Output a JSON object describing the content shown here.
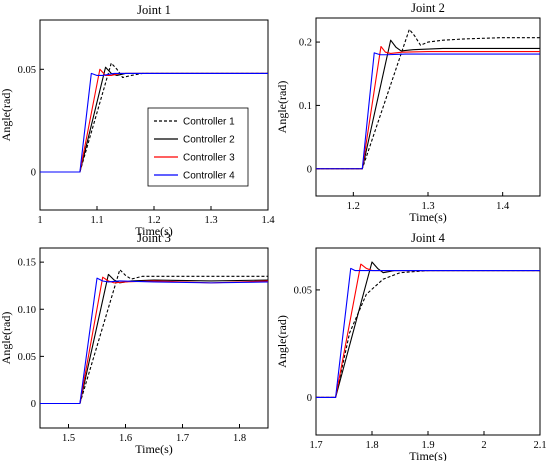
{
  "chart_data": [
    {
      "type": "line",
      "title": "Joint 1",
      "xlabel": "Time(s)",
      "ylabel": "Angle(rad)",
      "xlim": [
        1.0,
        1.4
      ],
      "ylim": [
        -0.0185,
        0.074
      ],
      "xticks": [
        1,
        1.1,
        1.2,
        1.3,
        1.4
      ],
      "xtick_labels": [
        "1",
        "1.1",
        "1.2",
        "1.3",
        "1.4"
      ],
      "yticks": [
        0,
        0.05
      ],
      "ytick_labels": [
        "0",
        "0.05"
      ],
      "legend": {
        "placement": "center",
        "entries": [
          "Controller 1",
          "Controller 2",
          "Controller 3",
          "Controller 4"
        ]
      },
      "series": [
        {
          "name": "Controller 1",
          "color": "#000000",
          "dash": "dashed",
          "x": [
            1.0,
            1.07,
            1.125,
            1.135,
            1.145,
            1.16,
            1.18,
            1.25,
            1.4
          ],
          "y": [
            0.0,
            0.0,
            0.053,
            0.05,
            0.046,
            0.047,
            0.048,
            0.048,
            0.048
          ]
        },
        {
          "name": "Controller 2",
          "color": "#000000",
          "dash": "solid",
          "x": [
            1.0,
            1.07,
            1.115,
            1.125,
            1.135,
            1.15,
            1.18,
            1.25,
            1.4
          ],
          "y": [
            0.0,
            0.0,
            0.051,
            0.048,
            0.047,
            0.048,
            0.048,
            0.048,
            0.048
          ]
        },
        {
          "name": "Controller 3",
          "color": "#ff0000",
          "dash": "solid",
          "x": [
            1.0,
            1.07,
            1.105,
            1.115,
            1.125,
            1.14,
            1.18,
            1.25,
            1.4
          ],
          "y": [
            0.0,
            0.0,
            0.05,
            0.047,
            0.047,
            0.048,
            0.048,
            0.048,
            0.048
          ]
        },
        {
          "name": "Controller 4",
          "color": "#0000ff",
          "dash": "solid",
          "x": [
            1.0,
            1.07,
            1.09,
            1.1,
            1.11,
            1.13,
            1.18,
            1.25,
            1.4
          ],
          "y": [
            0.0,
            0.0,
            0.048,
            0.047,
            0.047,
            0.048,
            0.048,
            0.048,
            0.048
          ]
        }
      ]
    },
    {
      "type": "line",
      "title": "Joint 2",
      "xlabel": "Time(s)",
      "ylabel": "Angle(rad)",
      "xlim": [
        1.15,
        1.45
      ],
      "ylim": [
        -0.043,
        0.238
      ],
      "xticks": [
        1.2,
        1.3,
        1.4
      ],
      "xtick_labels": [
        "1.2",
        "1.3",
        "1.4"
      ],
      "yticks": [
        0,
        0.1,
        0.2
      ],
      "ytick_labels": [
        "0",
        "0.1",
        "0.2"
      ],
      "series": [
        {
          "name": "Controller 1",
          "color": "#000000",
          "dash": "dashed",
          "x": [
            1.15,
            1.212,
            1.275,
            1.282,
            1.29,
            1.3,
            1.32,
            1.35,
            1.4,
            1.45
          ],
          "y": [
            0.0,
            0.0,
            0.22,
            0.21,
            0.195,
            0.2,
            0.203,
            0.205,
            0.207,
            0.207
          ]
        },
        {
          "name": "Controller 2",
          "color": "#000000",
          "dash": "solid",
          "x": [
            1.15,
            1.212,
            1.25,
            1.257,
            1.264,
            1.28,
            1.32,
            1.4,
            1.45
          ],
          "y": [
            0.0,
            0.0,
            0.203,
            0.192,
            0.186,
            0.188,
            0.19,
            0.19,
            0.19
          ]
        },
        {
          "name": "Controller 3",
          "color": "#ff0000",
          "dash": "solid",
          "x": [
            1.15,
            1.212,
            1.237,
            1.243,
            1.25,
            1.265,
            1.3,
            1.4,
            1.45
          ],
          "y": [
            0.0,
            0.0,
            0.193,
            0.184,
            0.182,
            0.184,
            0.185,
            0.185,
            0.185
          ]
        },
        {
          "name": "Controller 4",
          "color": "#0000ff",
          "dash": "solid",
          "x": [
            1.15,
            1.212,
            1.228,
            1.236,
            1.245,
            1.27,
            1.3,
            1.4,
            1.45
          ],
          "y": [
            0.0,
            0.0,
            0.183,
            0.18,
            0.18,
            0.181,
            0.181,
            0.181,
            0.181
          ]
        }
      ]
    },
    {
      "type": "line",
      "title": "Joint 3",
      "xlabel": "Time(s)",
      "ylabel": "Angle(rad)",
      "xlim": [
        1.45,
        1.85
      ],
      "ylim": [
        -0.026,
        0.165
      ],
      "xticks": [
        1.5,
        1.6,
        1.7,
        1.8
      ],
      "xtick_labels": [
        "1.5",
        "1.6",
        "1.7",
        "1.8"
      ],
      "yticks": [
        0,
        0.05,
        0.1,
        0.15
      ],
      "ytick_labels": [
        "0",
        "0.05",
        "0.10",
        "0.15"
      ],
      "series": [
        {
          "name": "Controller 1",
          "color": "#000000",
          "dash": "dashed",
          "x": [
            1.45,
            1.52,
            1.59,
            1.6,
            1.61,
            1.63,
            1.7,
            1.85
          ],
          "y": [
            0.0,
            0.0,
            0.142,
            0.136,
            0.132,
            0.135,
            0.135,
            0.135
          ]
        },
        {
          "name": "Controller 2",
          "color": "#000000",
          "dash": "solid",
          "x": [
            1.45,
            1.52,
            1.57,
            1.58,
            1.59,
            1.61,
            1.65,
            1.75,
            1.85
          ],
          "y": [
            0.0,
            0.0,
            0.137,
            0.131,
            0.128,
            0.13,
            0.131,
            0.13,
            0.131
          ]
        },
        {
          "name": "Controller 3",
          "color": "#ff0000",
          "dash": "solid",
          "x": [
            1.45,
            1.52,
            1.56,
            1.57,
            1.58,
            1.6,
            1.65,
            1.75,
            1.85
          ],
          "y": [
            0.0,
            0.0,
            0.134,
            0.13,
            0.128,
            0.129,
            0.13,
            0.128,
            0.13
          ]
        },
        {
          "name": "Controller 4",
          "color": "#0000ff",
          "dash": "solid",
          "x": [
            1.45,
            1.52,
            1.55,
            1.56,
            1.57,
            1.59,
            1.65,
            1.75,
            1.85
          ],
          "y": [
            0.0,
            0.0,
            0.133,
            0.13,
            0.129,
            0.13,
            0.129,
            0.128,
            0.129
          ]
        }
      ]
    },
    {
      "type": "line",
      "title": "Joint 4",
      "xlabel": "Time(s)",
      "ylabel": "Angle(rad)",
      "xlim": [
        1.7,
        2.1
      ],
      "ylim": [
        -0.0175,
        0.0695
      ],
      "xticks": [
        1.7,
        1.8,
        1.9,
        2.0,
        2.1
      ],
      "xtick_labels": [
        "1.7",
        "1.8",
        "1.9",
        "2",
        "2.1"
      ],
      "yticks": [
        0,
        0.05
      ],
      "ytick_labels": [
        "0",
        "0.05"
      ],
      "series": [
        {
          "name": "Controller 1",
          "color": "#000000",
          "dash": "dashed",
          "x": [
            1.7,
            1.735,
            1.76,
            1.79,
            1.82,
            1.85,
            1.9,
            2.1
          ],
          "y": [
            0.0,
            0.0,
            0.03,
            0.048,
            0.055,
            0.058,
            0.059,
            0.059
          ]
        },
        {
          "name": "Controller 2",
          "color": "#000000",
          "dash": "solid",
          "x": [
            1.7,
            1.735,
            1.8,
            1.81,
            1.82,
            1.84,
            1.9,
            2.1
          ],
          "y": [
            0.0,
            0.0,
            0.063,
            0.06,
            0.058,
            0.059,
            0.059,
            0.059
          ]
        },
        {
          "name": "Controller 3",
          "color": "#ff0000",
          "dash": "solid",
          "x": [
            1.7,
            1.735,
            1.78,
            1.79,
            1.8,
            1.82,
            1.9,
            2.1
          ],
          "y": [
            0.0,
            0.0,
            0.062,
            0.06,
            0.059,
            0.059,
            0.059,
            0.059
          ]
        },
        {
          "name": "Controller 4",
          "color": "#0000ff",
          "dash": "solid",
          "x": [
            1.7,
            1.735,
            1.762,
            1.77,
            1.78,
            1.8,
            1.9,
            2.1
          ],
          "y": [
            0.0,
            0.0,
            0.06,
            0.059,
            0.059,
            0.059,
            0.059,
            0.059
          ]
        }
      ]
    }
  ]
}
